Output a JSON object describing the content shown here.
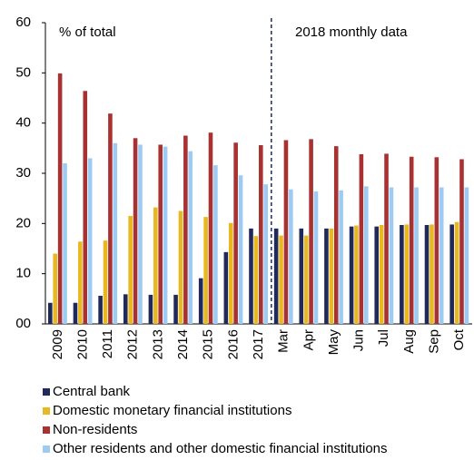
{
  "chart_data": {
    "type": "bar",
    "annotations": [
      "% of total",
      "2018 monthly data"
    ],
    "categories": [
      "2009",
      "2010",
      "2011",
      "2012",
      "2013",
      "2014",
      "2015",
      "2016",
      "2017",
      "Mar",
      "Apr",
      "May",
      "Jun",
      "Jul",
      "Aug",
      "Sep",
      "Oct"
    ],
    "series": [
      {
        "name": "Central bank",
        "color": "#1f2a5a",
        "values": [
          4.2,
          4.2,
          5.6,
          5.9,
          5.8,
          5.8,
          9.1,
          14.3,
          19.0,
          19.0,
          19.0,
          19.0,
          19.4,
          19.4,
          19.7,
          19.7,
          19.8
        ]
      },
      {
        "name": "Domestic monetary financial institutions",
        "color": "#e8b820",
        "values": [
          14.0,
          16.4,
          16.6,
          21.5,
          23.2,
          22.5,
          21.3,
          20.1,
          17.5,
          17.6,
          17.6,
          19.0,
          19.6,
          19.7,
          19.8,
          19.8,
          20.3
        ]
      },
      {
        "name": "Non-residents",
        "color": "#a83232",
        "values": [
          49.9,
          46.4,
          41.9,
          37.0,
          35.7,
          37.5,
          38.1,
          36.1,
          35.6,
          36.6,
          36.8,
          35.4,
          33.8,
          33.9,
          33.3,
          33.2,
          32.8
        ]
      },
      {
        "name": "Other residents and other domestic financial institutions",
        "color": "#9ecbf4",
        "values": [
          32.0,
          33.0,
          36.0,
          35.7,
          35.3,
          34.4,
          31.6,
          29.6,
          27.8,
          26.8,
          26.4,
          26.6,
          27.4,
          27.2,
          27.2,
          27.2,
          27.2
        ]
      }
    ],
    "ylim": [
      0,
      60
    ],
    "yticks": [
      {
        "value": 0,
        "label": "00"
      },
      10,
      20,
      30,
      40,
      50,
      60
    ]
  }
}
